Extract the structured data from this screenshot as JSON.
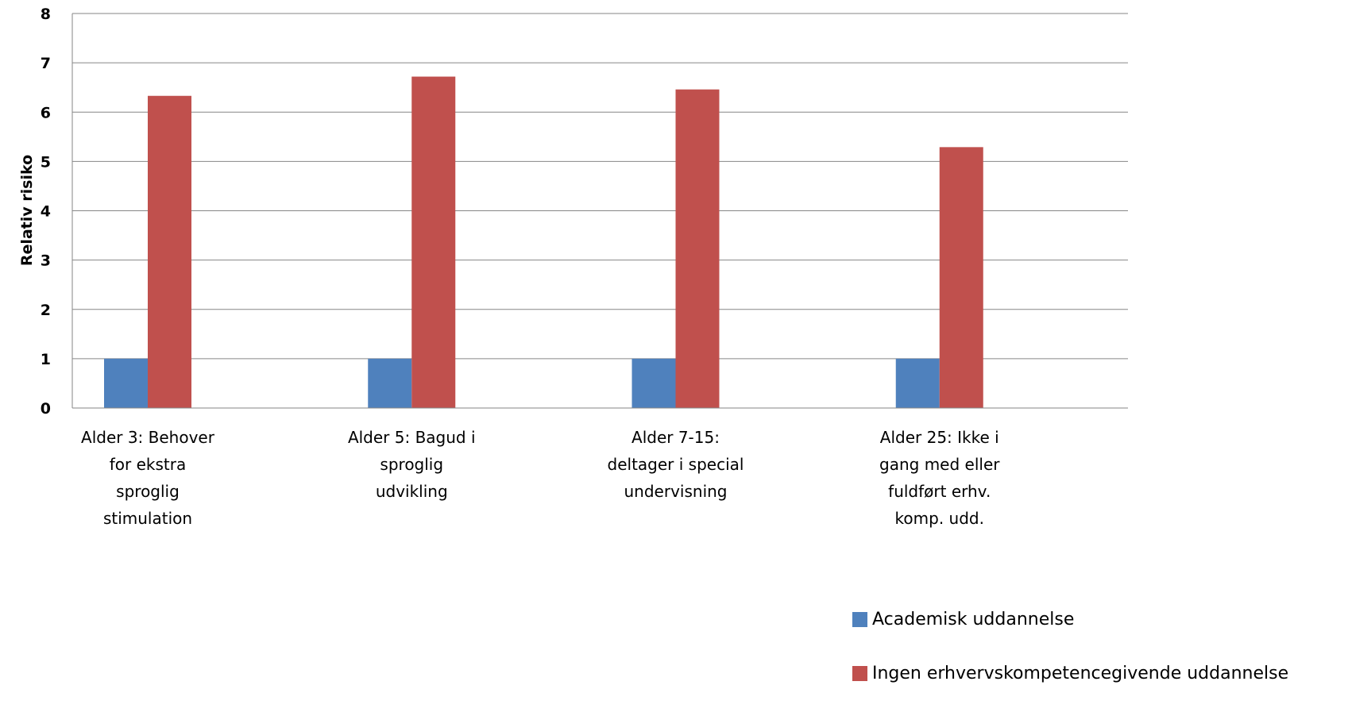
{
  "chart_data": {
    "type": "bar",
    "title": "",
    "xlabel": "",
    "ylabel": "Relativ risiko",
    "ylim": [
      0,
      8
    ],
    "yticks": [
      "0",
      "1",
      "2",
      "3",
      "4",
      "5",
      "6",
      "7",
      "8"
    ],
    "grid": true,
    "legend_position": "bottom-right",
    "categories": [
      [
        "Alder 3: Behover",
        "for ekstra",
        "sproglig",
        "stimulation"
      ],
      [
        "Alder 5: Bagud i",
        "sproglig",
        "udvikling"
      ],
      [
        "Alder 7-15:",
        "deltager i special",
        "undervisning"
      ],
      [
        "Alder 25: Ikke i",
        "gang med eller",
        "fuldført erhv.",
        "komp. udd."
      ]
    ],
    "series": [
      {
        "name": "Academisk uddannelse",
        "color": "#4F81BD",
        "values": [
          1,
          1,
          1,
          1
        ]
      },
      {
        "name": "Ingen erhvervskompetencegivende uddannelse",
        "color": "#C0504D",
        "values": [
          6.33,
          6.72,
          6.46,
          5.29
        ]
      }
    ]
  }
}
